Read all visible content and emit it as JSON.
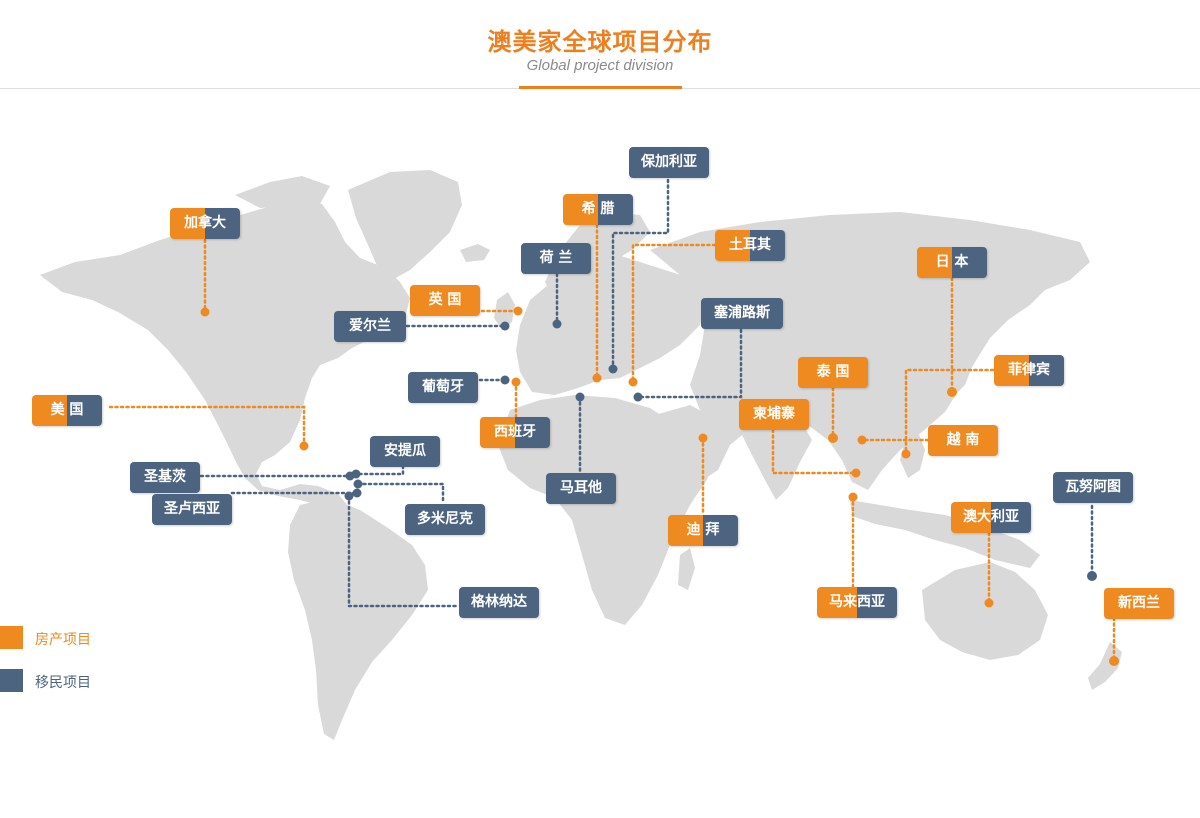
{
  "header": {
    "title": "澳美家全球项目分布",
    "subtitle": "Global project division"
  },
  "colors": {
    "property": "#ee8a1f",
    "immigration": "#4d6480",
    "land": "#d9d9d9",
    "accent": "#ee7f1f"
  },
  "legend": {
    "property_label": "房产项目",
    "immigration_label": "移民项目"
  },
  "locations": [
    {
      "id": "canada",
      "label": "加拿大",
      "type": "split"
    },
    {
      "id": "usa",
      "label": "美 国",
      "type": "split"
    },
    {
      "id": "uk",
      "label": "英 国",
      "type": "property"
    },
    {
      "id": "ireland",
      "label": "爱尔兰",
      "type": "immigration"
    },
    {
      "id": "netherlands",
      "label": "荷 兰",
      "type": "immigration"
    },
    {
      "id": "portugal",
      "label": "葡萄牙",
      "type": "immigration"
    },
    {
      "id": "spain",
      "label": "西班牙",
      "type": "split"
    },
    {
      "id": "greece",
      "label": "希 腊",
      "type": "split"
    },
    {
      "id": "bulgaria",
      "label": "保加利亚",
      "type": "immigration"
    },
    {
      "id": "turkey",
      "label": "土耳其",
      "type": "split"
    },
    {
      "id": "cyprus",
      "label": "塞浦路斯",
      "type": "immigration"
    },
    {
      "id": "malta",
      "label": "马耳他",
      "type": "immigration"
    },
    {
      "id": "dubai",
      "label": "迪 拜",
      "type": "split"
    },
    {
      "id": "antigua",
      "label": "安提瓜",
      "type": "immigration"
    },
    {
      "id": "st_kitts",
      "label": "圣基茨",
      "type": "immigration"
    },
    {
      "id": "st_lucia",
      "label": "圣卢西亚",
      "type": "immigration"
    },
    {
      "id": "dominica",
      "label": "多米尼克",
      "type": "immigration"
    },
    {
      "id": "grenada",
      "label": "格林纳达",
      "type": "immigration"
    },
    {
      "id": "japan",
      "label": "日 本",
      "type": "split"
    },
    {
      "id": "philippines",
      "label": "菲律宾",
      "type": "split"
    },
    {
      "id": "thailand",
      "label": "泰 国",
      "type": "property"
    },
    {
      "id": "cambodia",
      "label": "柬埔寨",
      "type": "property"
    },
    {
      "id": "vietnam",
      "label": "越 南",
      "type": "property"
    },
    {
      "id": "malaysia",
      "label": "马来西亚",
      "type": "split"
    },
    {
      "id": "australia",
      "label": "澳大利亚",
      "type": "split"
    },
    {
      "id": "vanuatu",
      "label": "瓦努阿图",
      "type": "immigration"
    },
    {
      "id": "new_zealand",
      "label": "新西兰",
      "type": "property"
    }
  ]
}
